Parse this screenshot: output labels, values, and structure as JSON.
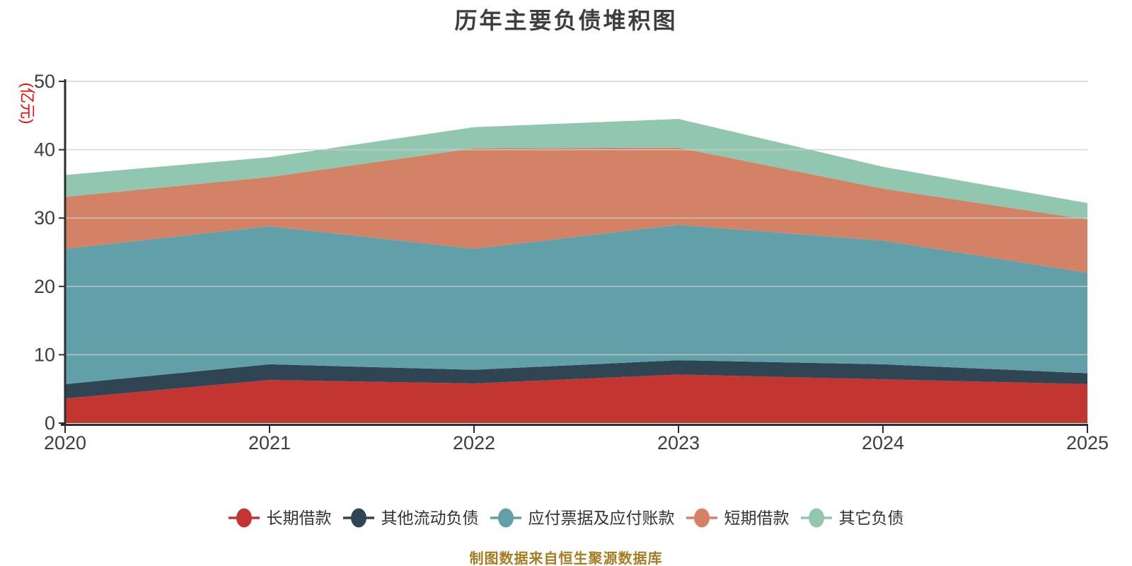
{
  "title": "历年主要负债堆积图",
  "y_axis_name": "(亿元)",
  "footer": "制图数据来自恒生聚源数据库",
  "colors": {
    "title_text": "#3d3d42",
    "axis_label": "#3e3e42",
    "axis_line": "#2e2e33",
    "gridline": "#cccccc",
    "y_axis_name_text": "#ff0000",
    "footer_text": "#a87b22",
    "legend_text": "#333333",
    "background": "#ffffff"
  },
  "chart_data": {
    "type": "area",
    "stacked": true,
    "title": "历年主要负债堆积图",
    "x": [
      "2020",
      "2021",
      "2022",
      "2023",
      "2024",
      "2025"
    ],
    "series": [
      {
        "name": "长期借款",
        "color": "#c23531",
        "values": [
          3.6,
          6.3,
          5.8,
          7.1,
          6.4,
          5.7
        ]
      },
      {
        "name": "其他流动负债",
        "color": "#2f4554",
        "values": [
          2.1,
          2.3,
          2.0,
          2.1,
          2.2,
          1.6
        ]
      },
      {
        "name": "应付票据及应付账款",
        "color": "#61a0a8",
        "values": [
          19.8,
          20.2,
          17.7,
          19.8,
          18.1,
          14.7
        ]
      },
      {
        "name": "短期借款",
        "color": "#d48265",
        "values": [
          7.6,
          7.2,
          14.7,
          11.3,
          7.6,
          7.8
        ]
      },
      {
        "name": "其它负债",
        "color": "#91c7ae",
        "values": [
          3.2,
          2.9,
          3.1,
          4.2,
          3.2,
          2.4
        ]
      }
    ],
    "xlabel": "",
    "ylabel": "(亿元)",
    "ylim": [
      0,
      50
    ],
    "y_ticks": [
      0,
      10,
      20,
      30,
      40,
      50
    ],
    "grid": true,
    "legend_position": "bottom",
    "legend": [
      "长期借款",
      "其他流动负债",
      "应付票据及应付账款",
      "短期借款",
      "其它负债"
    ]
  }
}
